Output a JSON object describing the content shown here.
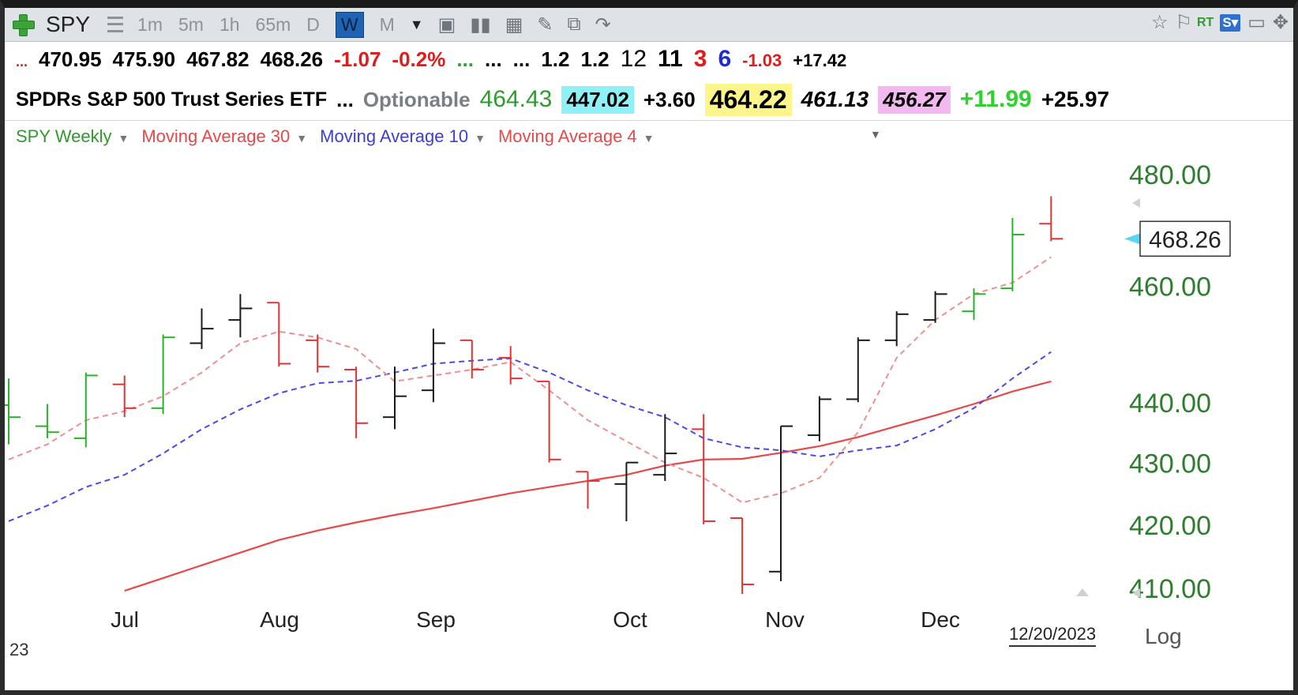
{
  "toolbar": {
    "symbol": "SPY",
    "timeframes": [
      "1m",
      "5m",
      "1h",
      "65m",
      "D",
      "W",
      "M"
    ],
    "active_timeframe": "W"
  },
  "quote": {
    "prefix": "...",
    "open": "470.95",
    "high": "475.90",
    "low": "467.82",
    "close": "468.26",
    "change": "-1.07",
    "pct_change": "-0.2%",
    "dots1": "...",
    "dots2": "...",
    "dots3": "...",
    "v1": "1.2",
    "v2": "1.2",
    "n1": "12",
    "n2": "11",
    "n3": "3",
    "n4": "6",
    "chg2": "-1.03",
    "chg3": "+17.42"
  },
  "row2": {
    "name": "SPDRs S&P 500 Trust Series ETF",
    "dots": "...",
    "optionable": "Optionable",
    "v1": "464.43",
    "v2": "447.02",
    "v3": "+3.60",
    "v4": "464.22",
    "v5": "461.13",
    "v6": "456.27",
    "v7": "+11.99",
    "v8": "+25.97"
  },
  "legend": {
    "items": [
      "SPY Weekly",
      "Moving Average 30",
      "Moving Average 10",
      "Moving Average 4"
    ]
  },
  "colors": {
    "up": "#27b327",
    "down": "#e03333",
    "neutral": "#1a1a1a",
    "ma30": "#e84848",
    "ma10": "#4a4ae6",
    "ma4": "#ef8f8f",
    "axis_text": "#2f7d2f"
  },
  "chart_data": {
    "type": "ohlc",
    "scale": "log",
    "x_labels": [
      "Jul",
      "Aug",
      "Sep",
      "Oct",
      "Nov",
      "Dec"
    ],
    "y_ticks": [
      "480.00",
      "460.00",
      "440.00",
      "430.00",
      "420.00",
      "410.00"
    ],
    "last_price_label": "468.26",
    "date_label": "12/20/2023",
    "log_label": "Log",
    "corner_label": "23",
    "bars": [
      {
        "o": 439.5,
        "h": 444.0,
        "l": 433.0,
        "c": 437.5,
        "col": "up"
      },
      {
        "o": 436.0,
        "h": 439.7,
        "l": 434.0,
        "c": 435.0,
        "col": "up"
      },
      {
        "o": 434.0,
        "h": 445.0,
        "l": 432.5,
        "c": 444.5,
        "col": "up"
      },
      {
        "o": 443.0,
        "h": 444.5,
        "l": 437.5,
        "c": 439.0,
        "col": "down"
      },
      {
        "o": 439.0,
        "h": 451.5,
        "l": 438.0,
        "c": 451.0,
        "col": "up"
      },
      {
        "o": 450.0,
        "h": 456.0,
        "l": 449.0,
        "c": 452.5,
        "col": "neutral"
      },
      {
        "o": 454.0,
        "h": 458.5,
        "l": 451.0,
        "c": 456.0,
        "col": "neutral"
      },
      {
        "o": 457.0,
        "h": 457.0,
        "l": 446.0,
        "c": 446.5,
        "col": "down"
      },
      {
        "o": 450.5,
        "h": 451.5,
        "l": 445.0,
        "c": 446.0,
        "col": "down"
      },
      {
        "o": 445.5,
        "h": 446.0,
        "l": 434.0,
        "c": 436.5,
        "col": "down"
      },
      {
        "o": 437.5,
        "h": 446.0,
        "l": 435.5,
        "c": 441.0,
        "col": "neutral"
      },
      {
        "o": 442.0,
        "h": 452.5,
        "l": 440.0,
        "c": 450.0,
        "col": "neutral"
      },
      {
        "o": 450.5,
        "h": 450.5,
        "l": 444.0,
        "c": 445.5,
        "col": "down"
      },
      {
        "o": 447.5,
        "h": 449.5,
        "l": 443.0,
        "c": 444.0,
        "col": "down"
      },
      {
        "o": 443.5,
        "h": 443.5,
        "l": 430.0,
        "c": 430.5,
        "col": "down"
      },
      {
        "o": 428.5,
        "h": 428.5,
        "l": 422.5,
        "c": 427.0,
        "col": "down"
      },
      {
        "o": 426.5,
        "h": 430.0,
        "l": 420.5,
        "c": 430.0,
        "col": "neutral"
      },
      {
        "o": 428.0,
        "h": 438.0,
        "l": 427.0,
        "c": 431.5,
        "col": "neutral"
      },
      {
        "o": 435.5,
        "h": 438.0,
        "l": 420.0,
        "c": 420.5,
        "col": "down"
      },
      {
        "o": 421.0,
        "h": 421.0,
        "l": 409.0,
        "c": 410.5,
        "col": "down"
      },
      {
        "o": 412.5,
        "h": 436.0,
        "l": 411.0,
        "c": 436.0,
        "col": "neutral"
      },
      {
        "o": 434.5,
        "h": 441.0,
        "l": 433.5,
        "c": 440.5,
        "col": "neutral"
      },
      {
        "o": 440.5,
        "h": 451.0,
        "l": 440.0,
        "c": 450.5,
        "col": "neutral"
      },
      {
        "o": 450.5,
        "h": 455.5,
        "l": 449.5,
        "c": 455.0,
        "col": "neutral"
      },
      {
        "o": 454.0,
        "h": 459.0,
        "l": 453.5,
        "c": 458.5,
        "col": "neutral"
      },
      {
        "o": 455.5,
        "h": 459.5,
        "l": 454.0,
        "c": 458.5,
        "col": "up"
      },
      {
        "o": 459.5,
        "h": 472.0,
        "l": 459.0,
        "c": 469.0,
        "col": "up"
      },
      {
        "o": 470.95,
        "h": 475.9,
        "l": 467.82,
        "c": 468.26,
        "col": "down"
      }
    ],
    "ma30": [
      null,
      null,
      null,
      409.5,
      411.5,
      413.5,
      415.5,
      417.5,
      419.0,
      420.3,
      421.5,
      422.6,
      423.8,
      425.0,
      426.0,
      427.0,
      428.0,
      429.5,
      430.5,
      430.6,
      431.6,
      432.7,
      434.2,
      436.0,
      437.8,
      439.7,
      441.8,
      443.5
    ],
    "ma10": [
      420.5,
      423.0,
      426.0,
      428.0,
      431.5,
      435.5,
      438.8,
      441.5,
      443.2,
      443.6,
      445.0,
      446.5,
      447.0,
      447.4,
      445.0,
      442.0,
      439.5,
      437.5,
      434.0,
      432.5,
      432.0,
      431.0,
      432.0,
      432.8,
      435.5,
      439.0,
      444.0,
      448.5
    ],
    "ma4": [
      430.5,
      433.0,
      437.0,
      438.5,
      441.0,
      445.0,
      450.0,
      452.0,
      451.0,
      449.0,
      443.5,
      444.5,
      445.5,
      446.8,
      442.0,
      437.0,
      433.5,
      430.0,
      427.5,
      423.5,
      425.0,
      427.5,
      435.0,
      447.5,
      454.0,
      458.5,
      460.5,
      465.0
    ]
  }
}
